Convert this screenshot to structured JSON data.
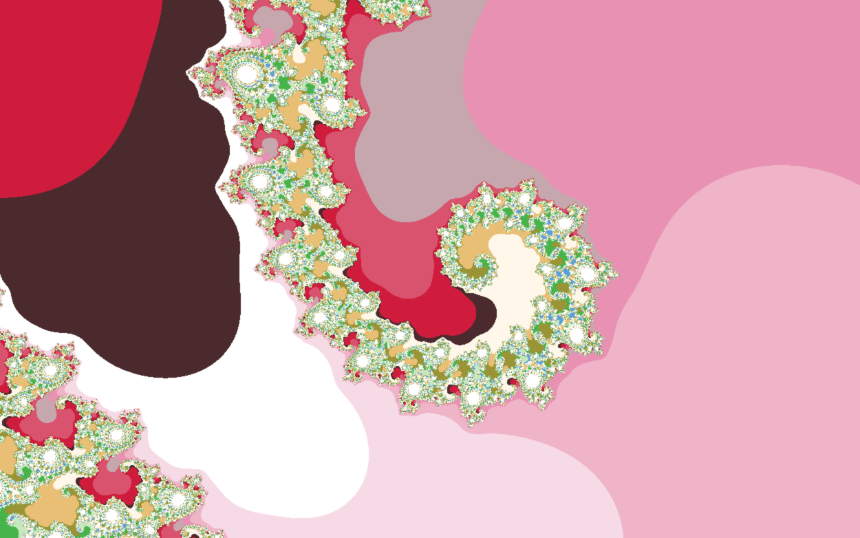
{
  "image": {
    "subject": "fractal-render",
    "palette": {
      "white": "#ffffff",
      "blush": "#f6dbe6",
      "light_pink": "#efb4c8",
      "pink": "#e991b2",
      "mauve": "#c6a7ae",
      "rose": "#d9536f",
      "crimson": "#cf1c3c",
      "dark_brown": "#4a2a2c",
      "cream": "#fff7ea",
      "tan": "#e9bf76",
      "olive": "#9a9435",
      "green": "#46b34b",
      "light_green": "#c6e8bd",
      "blue": "#5aa0d8"
    }
  }
}
